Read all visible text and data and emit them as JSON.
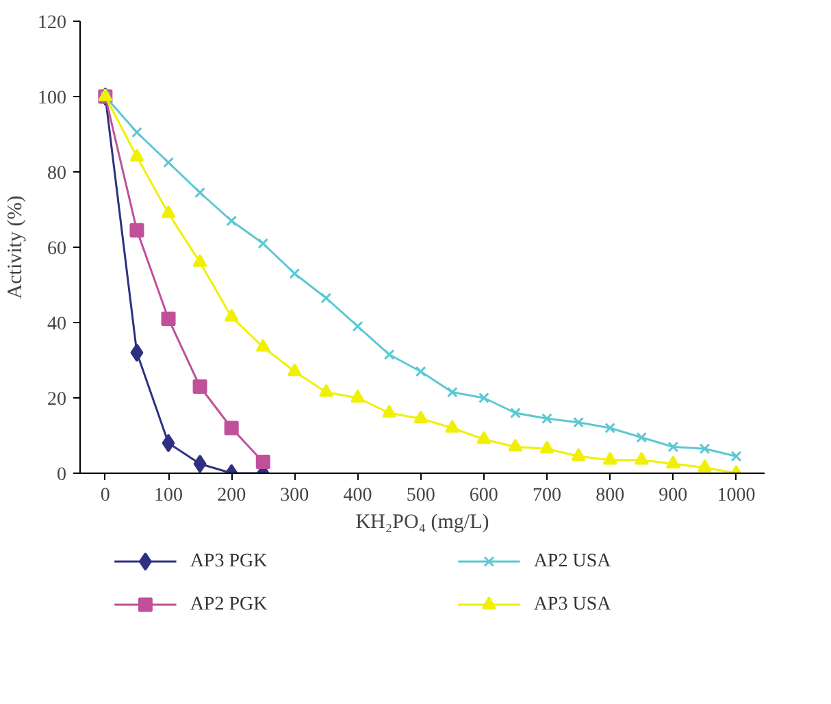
{
  "chart_data": {
    "type": "line",
    "xlabel": "KH₂PO₄ (mg/L)",
    "ylabel": "Activity (%)",
    "xlim": [
      -40,
      1045
    ],
    "xticks": [
      0,
      100,
      200,
      300,
      400,
      500,
      600,
      700,
      800,
      900,
      1000
    ],
    "ylim": [
      0,
      120
    ],
    "yticks": [
      0,
      20,
      40,
      60,
      80,
      100,
      120
    ],
    "grid": false,
    "legend": "bottom",
    "series": [
      {
        "name": "AP3 PGK",
        "color": "#2e3182",
        "marker": "diamond",
        "x": [
          0,
          50,
          100,
          150,
          200,
          250
        ],
        "values": [
          100,
          32,
          8,
          2.5,
          0,
          0
        ]
      },
      {
        "name": "AP2 PGK",
        "color": "#c0509a",
        "marker": "square",
        "x": [
          0,
          50,
          100,
          150,
          200,
          250
        ],
        "values": [
          100,
          64.5,
          41,
          23,
          12,
          3
        ]
      },
      {
        "name": "AP2 USA",
        "color": "#5bc8d4",
        "marker": "cross",
        "x": [
          0,
          50,
          100,
          150,
          200,
          250,
          300,
          350,
          400,
          450,
          500,
          550,
          600,
          650,
          700,
          750,
          800,
          850,
          900,
          950,
          1000
        ],
        "values": [
          100,
          90.5,
          82.5,
          74.5,
          67,
          61,
          53,
          46.5,
          39,
          31.5,
          27,
          21.5,
          20,
          16,
          14.5,
          13.5,
          12,
          9.5,
          7,
          6.5,
          4.5
        ]
      },
      {
        "name": "AP3 USA",
        "color": "#f0f000",
        "marker": "triangle",
        "x": [
          0,
          50,
          100,
          150,
          200,
          250,
          300,
          350,
          400,
          450,
          500,
          550,
          600,
          650,
          700,
          750,
          800,
          850,
          900,
          950,
          1000
        ],
        "values": [
          100,
          84,
          69,
          56,
          41.5,
          33.5,
          27,
          21.5,
          20,
          16,
          14.5,
          12,
          9,
          7,
          6.5,
          4.5,
          3.5,
          3.5,
          2.5,
          1.5,
          0
        ]
      }
    ]
  }
}
